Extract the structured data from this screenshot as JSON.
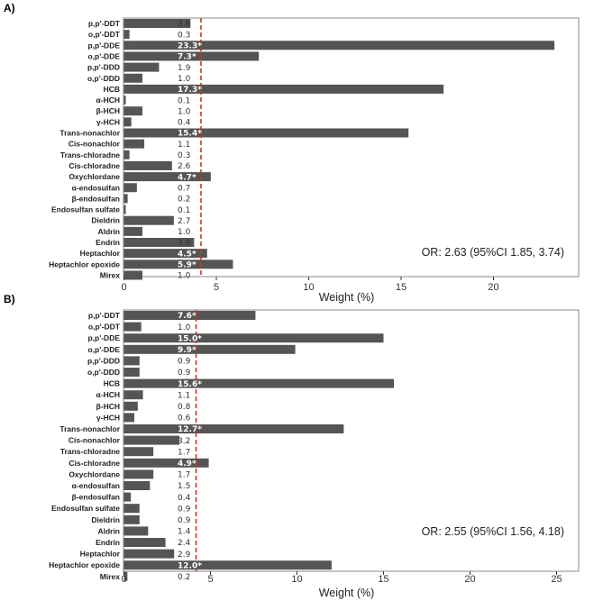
{
  "chart_data": [
    {
      "panel": "A)",
      "type": "bar",
      "orientation": "horizontal",
      "categories": [
        "p,p'-DDT",
        "o,p'-DDT",
        "p,p'-DDE",
        "o,p'-DDE",
        "p,p'-DDD",
        "o,p'-DDD",
        "HCB",
        "α-HCH",
        "β-HCH",
        "γ-HCH",
        "Trans-nonachlor",
        "Cis-nonachlor",
        "Trans-chloradne",
        "Cis-chloradne",
        "Oxychlordane",
        "α-endosulfan",
        "β-endosulfan",
        "Endosulfan sulfate",
        "Dieldrin",
        "Aldrin",
        "Endrin",
        "Heptachlor",
        "Heptachlor epoxide",
        "Mirex"
      ],
      "values": [
        3.6,
        0.3,
        23.3,
        7.3,
        1.9,
        1.0,
        17.3,
        0.1,
        1.0,
        0.4,
        15.4,
        1.1,
        0.3,
        2.6,
        4.7,
        0.7,
        0.2,
        0.1,
        2.7,
        1.0,
        3.8,
        4.5,
        5.9,
        1.0
      ],
      "labels": [
        "3.6",
        "0.3",
        "23.3*",
        "7.3*",
        "1.9",
        "1.0",
        "17.3*",
        "0.1",
        "1.0",
        "0.4",
        "15.4*",
        "1.1",
        "0.3",
        "2.6",
        "4.7*",
        "0.7",
        "0.2",
        "0.1",
        "2.7",
        "1.0",
        "3.8",
        "4.5*",
        "5.9*",
        "1.0"
      ],
      "xlabel": "Weight (%)",
      "xlim": [
        -0.5,
        24
      ],
      "xticks": [
        0,
        5,
        10,
        15,
        20
      ],
      "threshold": 4.17,
      "annotation": "OR: 2.63 (95%CI 1.85, 3.74)"
    },
    {
      "panel": "B)",
      "type": "bar",
      "orientation": "horizontal",
      "categories": [
        "p,p'-DDT",
        "o,p'-DDT",
        "p,p'-DDE",
        "o,p'-DDE",
        "p,p'-DDD",
        "o,p'-DDD",
        "HCB",
        "α-HCH",
        "β-HCH",
        "γ-HCH",
        "Trans-nonachlor",
        "Cis-nonachlor",
        "Trans-chloradne",
        "Cis-chloradne",
        "Oxychlordane",
        "α-endosulfan",
        "β-endosulfan",
        "Endosulfan sulfate",
        "Dieldrin",
        "Aldrin",
        "Endrin",
        "Heptachlor",
        "Heptachlor epoxide",
        "Mirex"
      ],
      "values": [
        7.6,
        1.0,
        15.0,
        9.9,
        0.9,
        0.9,
        15.6,
        1.1,
        0.8,
        0.6,
        12.7,
        3.2,
        1.7,
        4.9,
        1.7,
        1.5,
        0.4,
        0.9,
        0.9,
        1.4,
        2.4,
        2.9,
        12.0,
        0.2
      ],
      "labels": [
        "7.6*",
        "1.0",
        "15.0*",
        "9.9*",
        "0.9",
        "0.9",
        "15.6*",
        "1.1",
        "0.8",
        "0.6",
        "12.7*",
        "3.2",
        "1.7",
        "4.9*",
        "1.7",
        "1.5",
        "0.4",
        "0.9",
        "0.9",
        "1.4",
        "2.4",
        "2.9",
        "12.0*",
        "0.2"
      ],
      "xlabel": "Weight (%)",
      "xlim": [
        -0.5,
        25.5
      ],
      "xticks": [
        0,
        5,
        10,
        15,
        20,
        25
      ],
      "threshold": 4.17,
      "annotation": "OR: 2.55 (95%CI 1.56, 4.18)"
    }
  ],
  "colors": {
    "bar": "#555555",
    "threshold": "#c0392b",
    "frame": "#888888",
    "tick": "#333333"
  }
}
